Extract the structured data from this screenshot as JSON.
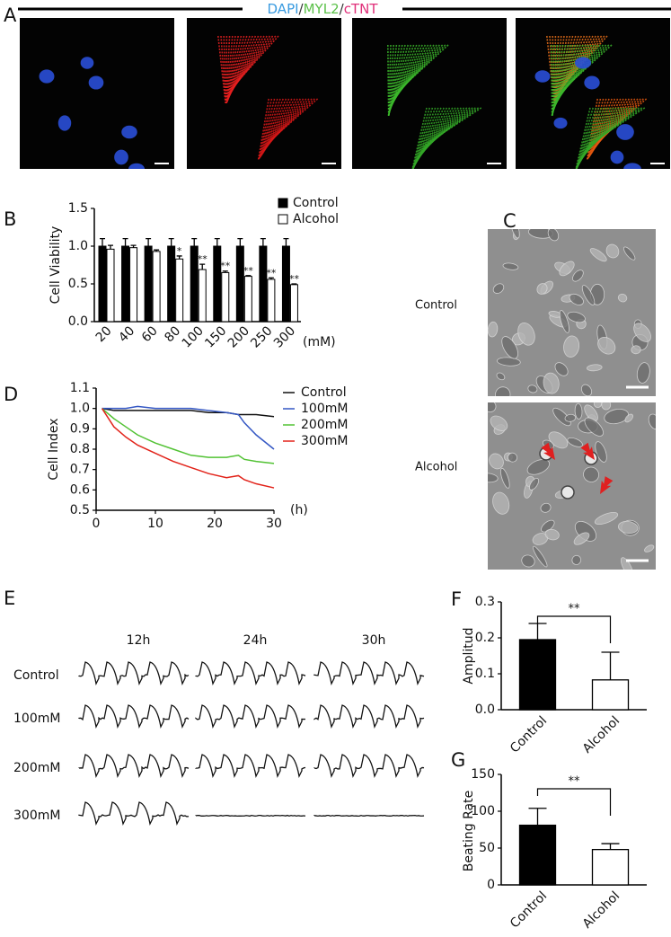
{
  "panel_a": {
    "label": "A",
    "stain": [
      {
        "text": "DAPI",
        "color": "#3a9be0"
      },
      {
        "text": "/",
        "color": "#333333"
      },
      {
        "text": "MYL2",
        "color": "#5cc14a"
      },
      {
        "text": "/",
        "color": "#333333"
      },
      {
        "text": "cTNT",
        "color": "#e0307a"
      }
    ]
  },
  "panel_c": {
    "label": "C",
    "rows": [
      "Control",
      "Alcohol"
    ]
  },
  "panel_e": {
    "label": "E",
    "columns": [
      "12h",
      "24h",
      "30h"
    ],
    "rows": [
      "Control",
      "100mM",
      "200mM",
      "300mM"
    ]
  },
  "chart_data": [
    {
      "type": "bar",
      "panel": "B",
      "ylabel": "Cell Viability",
      "xlabel": "(mM)",
      "categories": [
        "20",
        "40",
        "60",
        "80",
        "100",
        "150",
        "200",
        "250",
        "300"
      ],
      "series": [
        {
          "name": "Control",
          "color": "#000000",
          "values": [
            1.0,
            1.0,
            1.0,
            1.0,
            1.0,
            1.0,
            1.0,
            1.0,
            1.0
          ],
          "errors": [
            0.1,
            0.1,
            0.1,
            0.1,
            0.1,
            0.1,
            0.1,
            0.1,
            0.1
          ]
        },
        {
          "name": "Alcohol",
          "color": "#ffffff",
          "values": [
            0.96,
            0.98,
            0.93,
            0.83,
            0.69,
            0.65,
            0.6,
            0.56,
            0.49
          ],
          "errors": [
            0.05,
            0.03,
            0.02,
            0.04,
            0.07,
            0.02,
            0.01,
            0.02,
            0.01
          ]
        }
      ],
      "significance": [
        null,
        null,
        null,
        "*",
        "**",
        "**",
        "**",
        "**",
        "**"
      ],
      "ylim": [
        0,
        1.5
      ],
      "yticks": [
        {
          "value": 0,
          "label": "0.0"
        },
        0.5,
        {
          "value": 1,
          "label": "1.0"
        },
        1.5
      ]
    },
    {
      "type": "line",
      "panel": "D",
      "ylabel": "Cell Index",
      "xlabel": "(h)",
      "x": [
        1,
        3,
        5,
        7,
        10,
        13,
        16,
        19,
        22,
        24,
        25,
        27,
        30
      ],
      "series": [
        {
          "name": "Control",
          "color": "#111111",
          "values": [
            1.0,
            0.99,
            0.99,
            0.99,
            0.99,
            0.99,
            0.99,
            0.98,
            0.98,
            0.97,
            0.97,
            0.97,
            0.96
          ]
        },
        {
          "name": "100mM",
          "color": "#3457c4",
          "values": [
            1.0,
            1.0,
            1.0,
            1.01,
            1.0,
            1.0,
            1.0,
            0.99,
            0.98,
            0.97,
            0.93,
            0.87,
            0.8
          ]
        },
        {
          "name": "200mM",
          "color": "#52c234",
          "values": [
            1.0,
            0.95,
            0.91,
            0.87,
            0.83,
            0.8,
            0.77,
            0.76,
            0.76,
            0.77,
            0.75,
            0.74,
            0.73
          ]
        },
        {
          "name": "300mM",
          "color": "#e2231a",
          "values": [
            1.0,
            0.91,
            0.86,
            0.82,
            0.78,
            0.74,
            0.71,
            0.68,
            0.66,
            0.67,
            0.65,
            0.63,
            0.61
          ]
        }
      ],
      "xlim": [
        0,
        30
      ],
      "xticks": [
        0,
        10,
        20,
        30
      ],
      "ylim": [
        0.5,
        1.1
      ],
      "yticks": [
        0.5,
        0.6,
        0.7,
        0.8,
        0.9,
        {
          "value": 1,
          "label": "1.0"
        },
        1.1
      ]
    },
    {
      "type": "bar",
      "panel": "F",
      "ylabel": "Amplitud",
      "categories": [
        "Control",
        "Alcohol"
      ],
      "values": [
        0.195,
        0.083
      ],
      "errors": [
        0.045,
        0.077
      ],
      "colors": [
        "#000000",
        "#ffffff"
      ],
      "significance": "**",
      "ylim": [
        0,
        0.3
      ],
      "yticks": [
        {
          "value": 0,
          "label": "0.0"
        },
        0.1,
        0.2,
        0.3
      ]
    },
    {
      "type": "bar",
      "panel": "G",
      "ylabel": "Beating Rate",
      "categories": [
        "Control",
        "Alcohol"
      ],
      "values": [
        81,
        48
      ],
      "errors": [
        23,
        8
      ],
      "colors": [
        "#000000",
        "#ffffff"
      ],
      "significance": "**",
      "ylim": [
        0,
        150
      ],
      "yticks": [
        0,
        50,
        100,
        150
      ]
    }
  ]
}
